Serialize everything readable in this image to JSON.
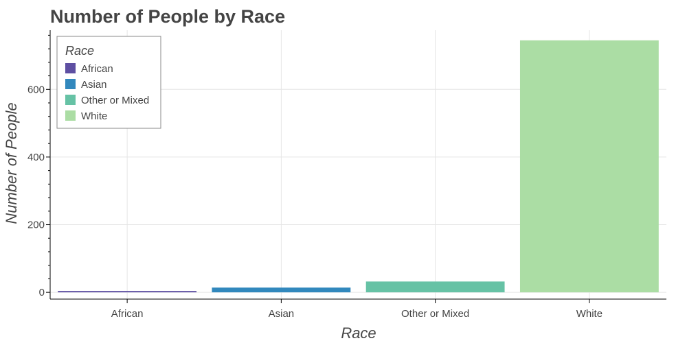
{
  "chart_data": {
    "type": "bar",
    "title": "Number of People by Race",
    "xlabel": "Race",
    "ylabel": "Number of People",
    "categories": [
      "African",
      "Asian",
      "Other or Mixed",
      "White"
    ],
    "values": [
      4,
      14,
      32,
      745
    ],
    "colors": [
      "#5e4fa2",
      "#3288bd",
      "#66c2a5",
      "#abdda4"
    ],
    "ylim": [
      -20,
      775
    ],
    "yticks": [
      0,
      200,
      400,
      600
    ],
    "grid": true,
    "legend": {
      "title": "Race",
      "placement": "top-left",
      "items": [
        "African",
        "Asian",
        "Other or Mixed",
        "White"
      ]
    }
  }
}
